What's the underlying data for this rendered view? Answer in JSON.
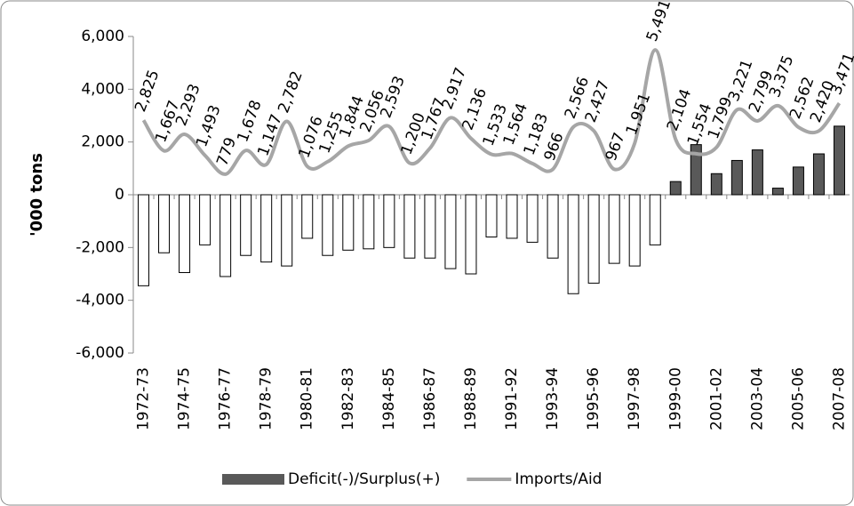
{
  "chart_data": {
    "type": "bar-line",
    "y_axis_label": "'000 tons",
    "categories": [
      "1972-73",
      null,
      "1974-75",
      null,
      "1976-77",
      null,
      "1978-79",
      null,
      "1980-81",
      null,
      "1982-83",
      null,
      "1984-85",
      null,
      "1986-87",
      null,
      "1988-89",
      null,
      "1991-92",
      null,
      "1993-94",
      null,
      "1995-96",
      null,
      "1997-98",
      null,
      "1999-00",
      null,
      "2001-02",
      null,
      "2003-04",
      null,
      "2005-06",
      null,
      "2007-08"
    ],
    "ylim": [
      -6000,
      6000
    ],
    "yticks": [
      {
        "value": -6000,
        "label": "-6,000"
      },
      {
        "value": -4000,
        "label": "-4,000"
      },
      {
        "value": -2000,
        "label": "-2,000"
      },
      0,
      {
        "value": 2000,
        "label": "2,000"
      },
      {
        "value": 4000,
        "label": "4,000"
      },
      {
        "value": 6000,
        "label": "6,000"
      }
    ],
    "legend": "bottom",
    "series": [
      {
        "name": "Deficit(-)/Surplus(+)",
        "type": "bar",
        "color": "#595959",
        "negative_color": "#ffffff",
        "values": [
          -3450,
          -2200,
          -2950,
          -1900,
          -3100,
          -2300,
          -2550,
          -2700,
          -1650,
          -2300,
          -2100,
          -2050,
          -2000,
          -2400,
          -2400,
          -2800,
          -3000,
          -1600,
          -1650,
          -1800,
          -2400,
          -3750,
          -3350,
          -2600,
          -2700,
          -1900,
          500,
          1900,
          800,
          1300,
          1700,
          250,
          1050,
          1550,
          2600
        ]
      },
      {
        "name": "Imports/Aid",
        "type": "line",
        "color": "#a6a6a6",
        "values": [
          2825,
          1667,
          2293,
          1493,
          779,
          1678,
          1147,
          2782,
          1076,
          1255,
          1844,
          2056,
          2593,
          1200,
          1767,
          2917,
          2136,
          1533,
          1564,
          1183,
          966,
          2566,
          2427,
          967,
          1951,
          5491,
          2104,
          1554,
          1799,
          3221,
          2799,
          3375,
          2562,
          2420,
          3471
        ],
        "value_labels": [
          "2,825",
          "1,667",
          "2,293",
          "1,493",
          "779",
          "1,678",
          "1,147",
          "2,782",
          "1,076",
          "1,255",
          "1,844",
          "2,056",
          "2,593",
          "1,200",
          "1,767",
          "2,917",
          "2,136",
          "1,533",
          "1,564",
          "1,183",
          "966",
          "2,566",
          "2,427",
          "967",
          "1,951",
          "5,491",
          "2,104",
          "1,554",
          "1,799",
          "3,221",
          "2,799",
          "3,375",
          "2,562",
          "2,420",
          "3,471"
        ]
      }
    ]
  }
}
